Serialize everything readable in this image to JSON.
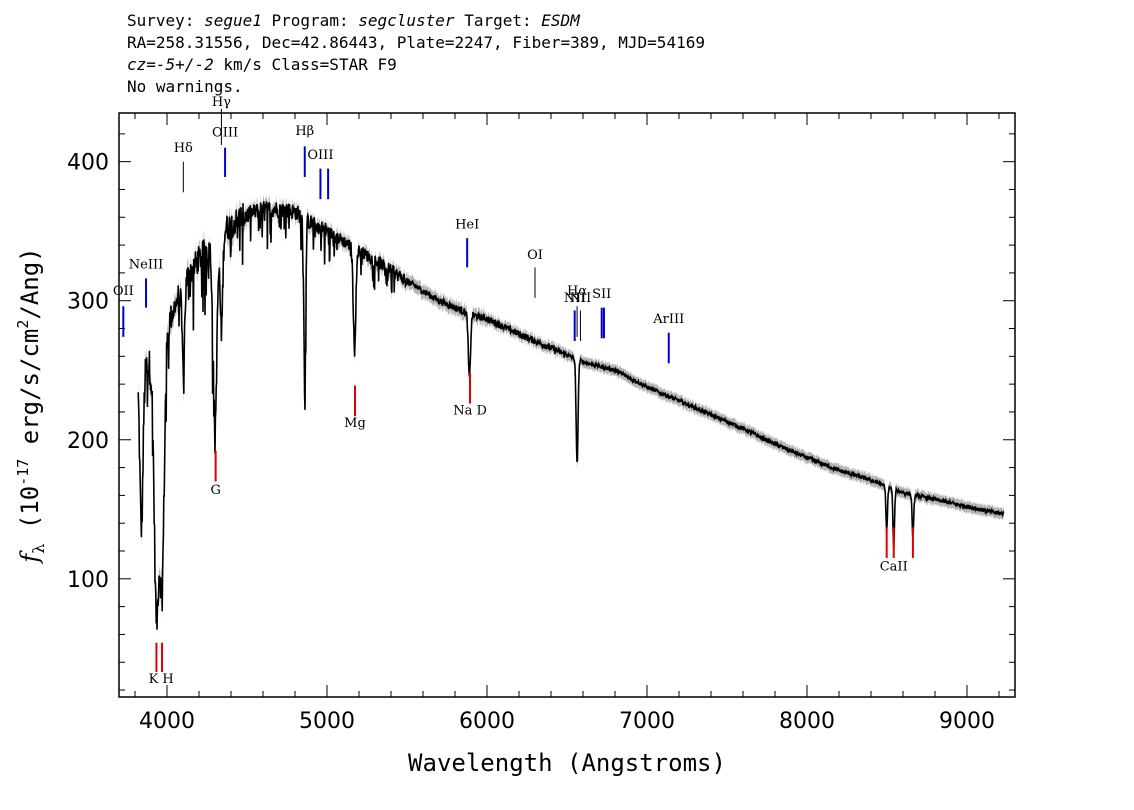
{
  "header": {
    "survey_label": "Survey:",
    "survey": "segue1",
    "program_label": "Program:",
    "program": "segcluster",
    "target_label": "Target:",
    "target": "ESDM",
    "line2": "RA=258.31556, Dec=42.86443, Plate=2247, Fiber=389, MJD=54169",
    "cz_label": "cz=",
    "cz_value": "-5+/-2",
    "cz_unit": "km/s Class=STAR F9",
    "warnings": "No warnings."
  },
  "chart_data": {
    "type": "line",
    "xlabel": "Wavelength (Angstroms)",
    "ylabel": "f_λ (10^-17 erg/s/cm^2/Ang)",
    "xlim": [
      3700,
      9300
    ],
    "ylim": [
      15,
      435
    ],
    "x_ticks": [
      4000,
      5000,
      6000,
      7000,
      8000,
      9000
    ],
    "y_ticks": [
      100,
      200,
      300,
      400
    ],
    "colors": {
      "flux": "#000000",
      "error": "#b4b4b4",
      "emission": "#0000cc",
      "absorption": "#dd0000"
    },
    "continuum": [
      {
        "x": 3820,
        "y": 245
      },
      {
        "x": 3900,
        "y": 255
      },
      {
        "x": 4000,
        "y": 280
      },
      {
        "x": 4100,
        "y": 312
      },
      {
        "x": 4200,
        "y": 330
      },
      {
        "x": 4300,
        "y": 345
      },
      {
        "x": 4400,
        "y": 355
      },
      {
        "x": 4500,
        "y": 362
      },
      {
        "x": 4600,
        "y": 366
      },
      {
        "x": 4700,
        "y": 366
      },
      {
        "x": 4800,
        "y": 364
      },
      {
        "x": 4900,
        "y": 356
      },
      {
        "x": 5000,
        "y": 350
      },
      {
        "x": 5100,
        "y": 343
      },
      {
        "x": 5200,
        "y": 336
      },
      {
        "x": 5300,
        "y": 329
      },
      {
        "x": 5400,
        "y": 322
      },
      {
        "x": 5500,
        "y": 314
      },
      {
        "x": 5600,
        "y": 307
      },
      {
        "x": 5700,
        "y": 300
      },
      {
        "x": 5800,
        "y": 295
      },
      {
        "x": 5900,
        "y": 290
      },
      {
        "x": 6000,
        "y": 287
      },
      {
        "x": 6200,
        "y": 276
      },
      {
        "x": 6400,
        "y": 266
      },
      {
        "x": 6600,
        "y": 256
      },
      {
        "x": 6800,
        "y": 250
      },
      {
        "x": 7000,
        "y": 238
      },
      {
        "x": 7200,
        "y": 228
      },
      {
        "x": 7400,
        "y": 218
      },
      {
        "x": 7600,
        "y": 208
      },
      {
        "x": 7800,
        "y": 197
      },
      {
        "x": 8000,
        "y": 187
      },
      {
        "x": 8200,
        "y": 178
      },
      {
        "x": 8400,
        "y": 171
      },
      {
        "x": 8600,
        "y": 162
      },
      {
        "x": 8800,
        "y": 157
      },
      {
        "x": 9000,
        "y": 152
      },
      {
        "x": 9200,
        "y": 147
      }
    ],
    "absorption_features": [
      {
        "x": 3934,
        "depth": 185,
        "width": 14
      },
      {
        "x": 3969,
        "depth": 170,
        "width": 14
      },
      {
        "x": 3840,
        "depth": 110,
        "width": 10
      },
      {
        "x": 4102,
        "depth": 60,
        "width": 8
      },
      {
        "x": 4300,
        "depth": 135,
        "width": 12
      },
      {
        "x": 4340,
        "depth": 70,
        "width": 8
      },
      {
        "x": 4861,
        "depth": 118,
        "width": 6
      },
      {
        "x": 5172,
        "depth": 72,
        "width": 8
      },
      {
        "x": 5890,
        "depth": 46,
        "width": 7
      },
      {
        "x": 6563,
        "depth": 75,
        "width": 6
      },
      {
        "x": 8498,
        "depth": 32,
        "width": 5
      },
      {
        "x": 8542,
        "depth": 42,
        "width": 5
      },
      {
        "x": 8662,
        "depth": 30,
        "width": 5
      }
    ],
    "emission_line_markers": [
      {
        "label": "OII",
        "x": 3727,
        "y0": 274,
        "y1": 296,
        "label_y": 304
      },
      {
        "label": "NeIII",
        "x": 3869,
        "y0": 295,
        "y1": 316,
        "label_y": 323
      },
      {
        "label": "Hδ",
        "x": 4102,
        "y0": 378,
        "y1": 400,
        "label_y": 407,
        "thin": true
      },
      {
        "label": "Hγ",
        "x": 4340,
        "y0": 412,
        "y1": 438,
        "label_y": 440,
        "thin": true
      },
      {
        "label": "OIII",
        "x": 4363,
        "y0": 389,
        "y1": 410,
        "label_y": 418
      },
      {
        "label": "Hβ",
        "x": 4861,
        "y0": 389,
        "y1": 411,
        "label_y": 419
      },
      {
        "label": "OIII",
        "x": 4959,
        "y0": 373,
        "y1": 395,
        "label_y": 402
      },
      {
        "label": "",
        "x": 5007,
        "y0": 373,
        "y1": 395
      },
      {
        "label": "HeI",
        "x": 5876,
        "y0": 324,
        "y1": 345,
        "label_y": 352
      },
      {
        "label": "OI",
        "x": 6300,
        "y0": 302,
        "y1": 324,
        "label_y": 330,
        "thin": true
      },
      {
        "label": "NII",
        "x": 6548,
        "y0": 271,
        "y1": 293,
        "label_y": 299
      },
      {
        "label": "Hα",
        "x": 6563,
        "y0": 274,
        "y1": 296,
        "label_y": 304,
        "thin": true
      },
      {
        "label": "NII",
        "x": 6584,
        "y0": 271,
        "y1": 293,
        "label_y": 299,
        "thin": true
      },
      {
        "label": "SII",
        "x": 6717,
        "y0": 273,
        "y1": 295,
        "label_y": 302
      },
      {
        "label": "",
        "x": 6731,
        "y0": 273,
        "y1": 295
      },
      {
        "label": "ArIII",
        "x": 7136,
        "y0": 255,
        "y1": 277,
        "label_y": 284
      }
    ],
    "absorption_line_markers": [
      {
        "label": "K",
        "x": 3934,
        "y0": 33,
        "y1": 54,
        "label_y": 25
      },
      {
        "label": "H",
        "x": 3969,
        "y0": 33,
        "y1": 54,
        "label_y": 25
      },
      {
        "label": "G",
        "x": 4304,
        "y0": 170,
        "y1": 192,
        "label_y": 161
      },
      {
        "label": "Mg",
        "x": 5175,
        "y0": 217,
        "y1": 239,
        "label_y": 209
      },
      {
        "label": "Na D",
        "x": 5894,
        "y0": 226,
        "y1": 248,
        "label_y": 218
      },
      {
        "label": "",
        "x": 8498,
        "y0": 115,
        "y1": 137
      },
      {
        "label": "CaII",
        "x": 8542,
        "y0": 115,
        "y1": 137,
        "label_y": 106
      },
      {
        "label": "",
        "x": 8662,
        "y0": 115,
        "y1": 137
      }
    ]
  }
}
